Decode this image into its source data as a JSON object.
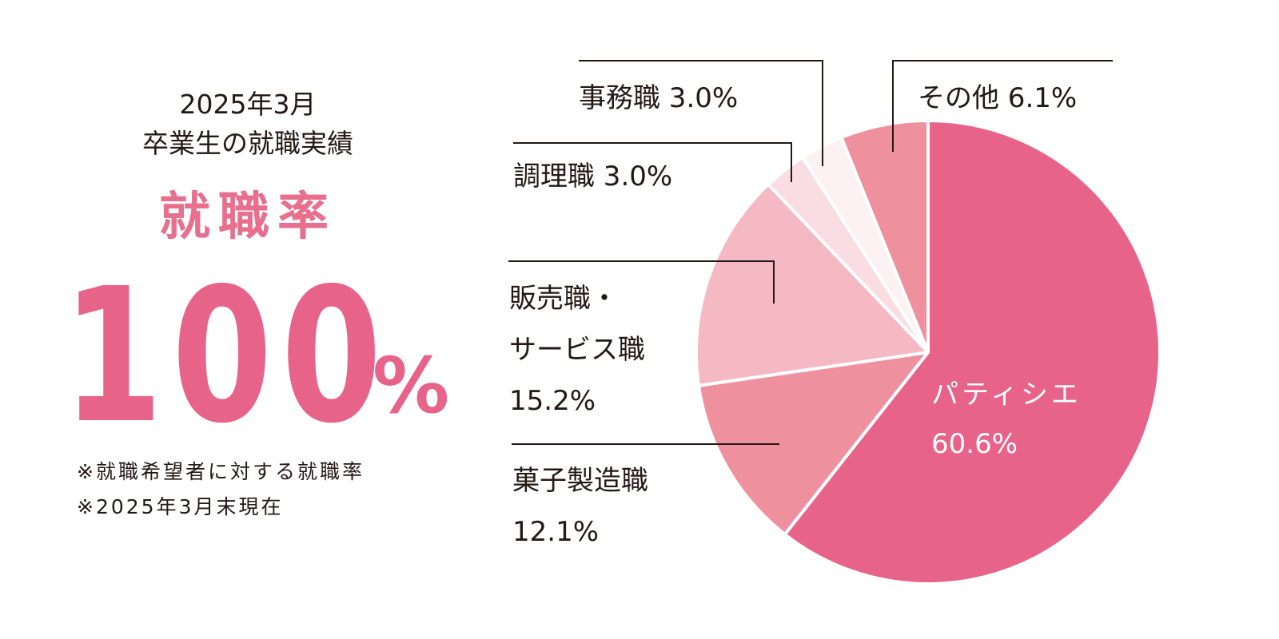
{
  "header": {
    "line_1": "2025年3月",
    "line_2": "卒業生の就職実績"
  },
  "rate": {
    "label": "就職率",
    "value": "100",
    "unit": "%"
  },
  "notes": [
    "※就職希望者に対する就職率",
    "※2025年3月末現在"
  ],
  "chart_data": {
    "type": "pie",
    "title": "",
    "start_angle_deg": 0,
    "direction": "clockwise",
    "slices": [
      {
        "label": "パティシエ",
        "value": 60.6,
        "display": "60.6%",
        "color": "#e8638a"
      },
      {
        "label": "菓子製造職",
        "value": 12.1,
        "display": "12.1%",
        "color": "#ef909f"
      },
      {
        "label": "販売職・サービス職",
        "value": 15.2,
        "display": "15.2%",
        "color": "#f4b9c3"
      },
      {
        "label": "調理職",
        "value": 3.0,
        "display": "3.0%",
        "color": "#f9dde2"
      },
      {
        "label": "事務職",
        "value": 3.0,
        "display": "3.0%",
        "color": "#fdf2f3"
      },
      {
        "label": "その他",
        "value": 6.1,
        "display": "6.1%",
        "color": "#ef909f"
      }
    ]
  },
  "labels": {
    "patissier": {
      "name": "パティシエ",
      "value": "60.6%"
    },
    "confectionery": {
      "name": "菓子製造職",
      "value": "12.1%"
    },
    "sales": {
      "name_1": "販売職・",
      "name_2": "サービス職",
      "value": "15.2%"
    },
    "cooking": {
      "text": "調理職 3.0%"
    },
    "office": {
      "text": "事務職 3.0%"
    },
    "other": {
      "text": "その他 6.1%"
    }
  },
  "colors": {
    "accent": "#e8638a",
    "text": "#231815",
    "leader_line": "#231815"
  }
}
